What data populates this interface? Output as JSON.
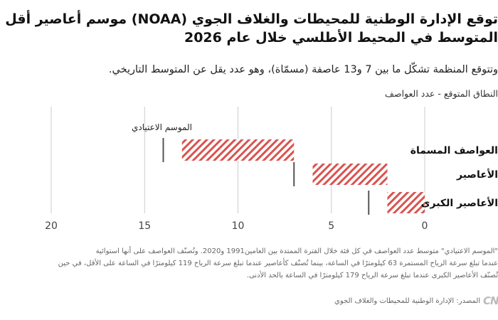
{
  "header": {
    "title_line1": "توقع الإدارة الوطنية للمحيطات والغلاف الجوي (NOAA) موسم أعاصير أقل من",
    "title_line2": "المتوسط في المحيط الأطلسي خلال عام 2026",
    "subtitle": "وتتوقع المنظمة تشكّل ما بين 7 و13 عاصفة (مسمّاة)، وهو عدد يقل عن المتوسط التاريخي.",
    "legend_label": "النطاق المتوقع - عدد العواصف"
  },
  "chart_data": {
    "type": "bar",
    "orientation": "horizontal-range",
    "x_direction": "reversed",
    "xlim": [
      0,
      20
    ],
    "xticks": [
      "20",
      "15",
      "10",
      "5",
      "0"
    ],
    "xtick_values": [
      20,
      15,
      10,
      5,
      0
    ],
    "categories": [
      "العواصف المسماة",
      "الأعاصير",
      "الأعاصير الكبرى"
    ],
    "ranges": [
      [
        7,
        13
      ],
      [
        2,
        6
      ],
      [
        0,
        2
      ]
    ],
    "typical_season": [
      14,
      7,
      3
    ],
    "typical_label": "الموسم الاعتيادي",
    "colors": {
      "range_stripe": "#d9534f",
      "typical_marker": "#555555",
      "grid": "#cccccc"
    }
  },
  "notes": {
    "line1": "\"الموسم الاعتيادي\" متوسط عدد العواصف في كل فئة خلال الفترة الممتدة بين العامين1991 و2020. وتُصنّف العواصف على أنها استوائية",
    "line2": "عندما تبلغ سرعة الرياح المستمرة 63 كيلومترًا في الساعة، بينما تُصنّف كأعاصير عندما تبلغ سرعة الرياح 119 كيلومترًا في الساعة على الأقل، في حين",
    "line3": "تُصنّف الأعاصير الكبرى عندما تبلغ سرعة الرياح 179 كيلومترًا في الساعة بالحد الأدنى."
  },
  "footer": {
    "source": "المصدر: الإدارة الوطنية للمحيطات والغلاف الجوي",
    "logo_text": "CNN"
  }
}
